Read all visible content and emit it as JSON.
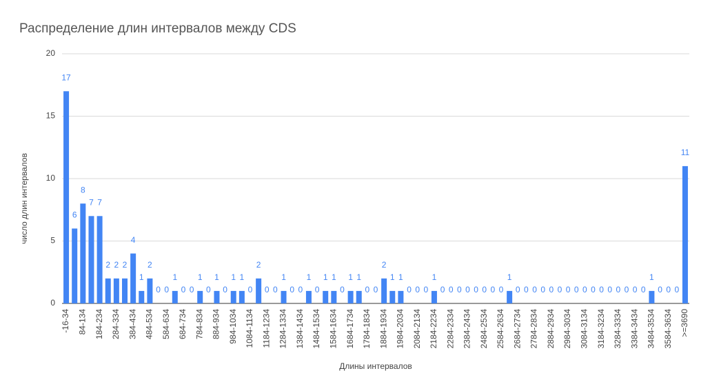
{
  "chart_data": {
    "type": "bar",
    "title": "Распределение длин интервалов между CDS",
    "x_label": "Длины интервалов",
    "y_label": "число длин интервалов",
    "color": "#4285f4",
    "grid": true,
    "ylim": [
      0,
      20
    ],
    "yticks": [
      0,
      5,
      10,
      15,
      20
    ],
    "categories": [
      "-16-34",
      null,
      "84-134",
      null,
      "184-234",
      null,
      "284-334",
      null,
      "384-434",
      null,
      "484-534",
      null,
      "584-634",
      null,
      "684-734",
      null,
      "784-834",
      null,
      "884-934",
      null,
      "984-1034",
      null,
      "1084-1134",
      null,
      "1184-1234",
      null,
      "1284-1334",
      null,
      "1384-1434",
      null,
      "1484-1534",
      null,
      "1584-1634",
      null,
      "1684-1734",
      null,
      "1784-1834",
      null,
      "1884-1934",
      null,
      "1984-2034",
      null,
      "2084-2134",
      null,
      "2184-2234",
      null,
      "2284-2334",
      null,
      "2384-2434",
      null,
      "2484-2534",
      null,
      "2584-2634",
      null,
      "2684-2734",
      null,
      "2784-2834",
      null,
      "2884-2934",
      null,
      "2984-3034",
      null,
      "3084-3134",
      null,
      "3184-3234",
      null,
      "3284-3334",
      null,
      "3384-3434",
      null,
      "3484-3534",
      null,
      "3584-3634",
      null,
      ">=3690"
    ],
    "values": [
      17,
      6,
      8,
      7,
      7,
      2,
      2,
      2,
      4,
      1,
      2,
      0,
      0,
      1,
      0,
      0,
      1,
      0,
      1,
      0,
      1,
      1,
      0,
      2,
      0,
      0,
      1,
      0,
      0,
      1,
      0,
      1,
      1,
      0,
      1,
      1,
      0,
      0,
      2,
      1,
      1,
      0,
      0,
      0,
      1,
      0,
      0,
      0,
      0,
      0,
      0,
      0,
      0,
      1,
      0,
      0,
      0,
      0,
      0,
      0,
      0,
      0,
      0,
      0,
      0,
      0,
      0,
      0,
      0,
      0,
      1,
      0,
      0,
      0,
      11
    ]
  }
}
